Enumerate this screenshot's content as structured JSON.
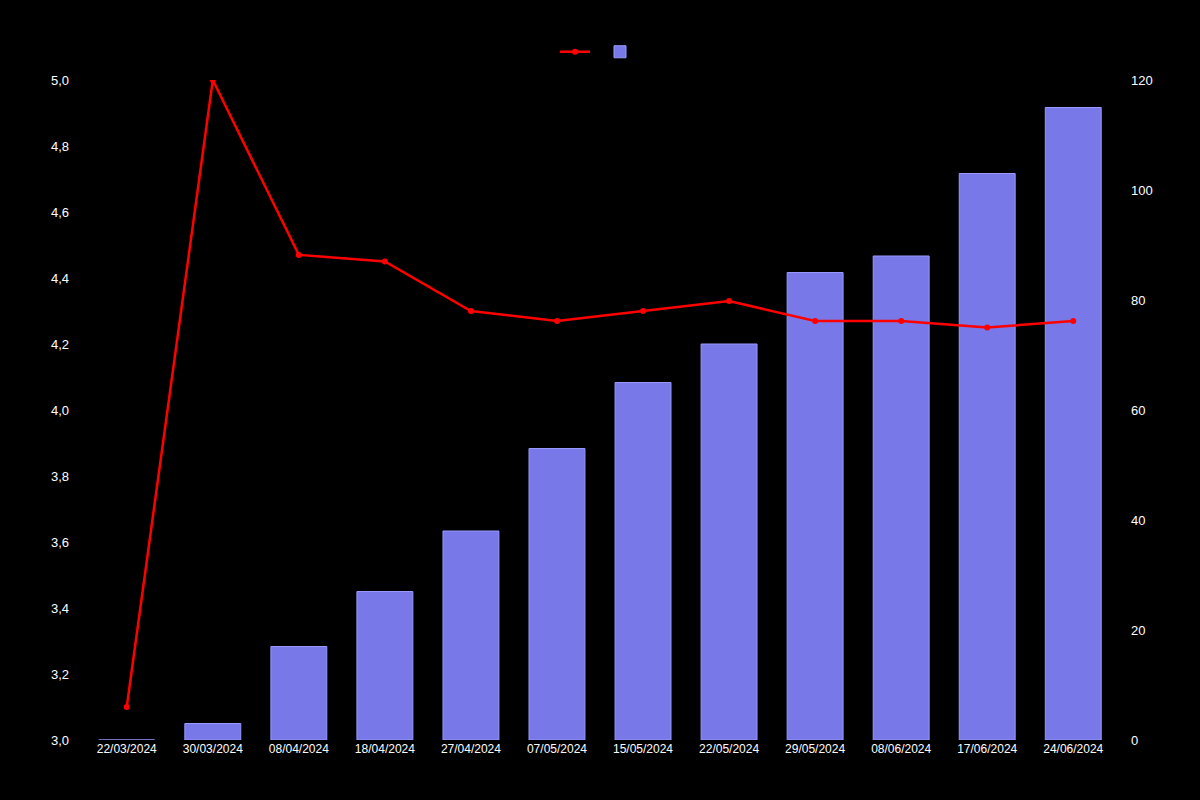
{
  "chart_data": {
    "type": "bar",
    "categories": [
      "22/03/2024",
      "30/03/2024",
      "08/04/2024",
      "18/04/2024",
      "27/04/2024",
      "07/05/2024",
      "15/05/2024",
      "22/05/2024",
      "29/05/2024",
      "08/06/2024",
      "17/06/2024",
      "24/06/2024"
    ],
    "series": [
      {
        "type": "bar",
        "color": "#7878e8",
        "axis": "y2",
        "values": [
          0,
          3,
          17,
          27,
          38,
          53,
          65,
          72,
          85,
          88,
          103,
          115
        ]
      },
      {
        "type": "line",
        "color": "#ff0000",
        "marker": "circle",
        "values": [
          3.1,
          5.0,
          4.47,
          4.45,
          4.3,
          4.27,
          4.3,
          4.33,
          4.27,
          4.27,
          4.25,
          4.27
        ]
      }
    ],
    "ylim": [
      3.0,
      5.0
    ],
    "yticks": [
      {
        "value": 3.0,
        "label": "3,0"
      },
      {
        "value": 3.2,
        "label": "3,2"
      },
      {
        "value": 3.4,
        "label": "3,4"
      },
      {
        "value": 3.6,
        "label": "3,6"
      },
      {
        "value": 3.8,
        "label": "3,8"
      },
      {
        "value": 4.0,
        "label": "4,0"
      },
      {
        "value": 4.2,
        "label": "4,2"
      },
      {
        "value": 4.4,
        "label": "4,4"
      },
      {
        "value": 4.6,
        "label": "4,6"
      },
      {
        "value": 4.8,
        "label": "4,8"
      },
      {
        "value": 5.0,
        "label": "5,0"
      }
    ],
    "y2lim": [
      0,
      120
    ],
    "y2ticks": [
      0,
      20,
      40,
      60,
      80,
      100,
      120
    ],
    "grid": false,
    "legend": "top"
  }
}
